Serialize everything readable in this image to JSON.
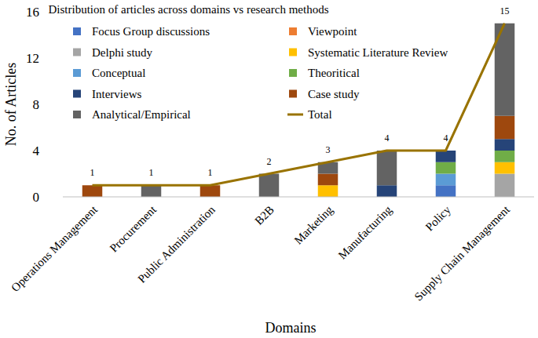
{
  "chart_data": {
    "type": "bar",
    "stacked": true,
    "title": "Distribution of articles across domains vs research methods",
    "x_label": "Domains",
    "y_label": "No. of Articles",
    "categories": [
      "Operations Management",
      "Procurement",
      "Public Administration",
      "B2B",
      "Marketing",
      "Manufacturing",
      "Policy",
      "Supply Chain Management"
    ],
    "ylim": [
      0,
      16
    ],
    "yticks": [
      0,
      4,
      8,
      12,
      16
    ],
    "grid": false,
    "legend": "upper left",
    "series": [
      {
        "name": "Focus Group discussions",
        "color": "#4472c4",
        "values": [
          0,
          0,
          0,
          0,
          0,
          0,
          1,
          0
        ]
      },
      {
        "name": "Viewpoint",
        "color": "#ed7d31",
        "values": [
          0,
          0,
          0,
          0,
          0,
          0,
          0,
          0
        ]
      },
      {
        "name": "Delphi study",
        "color": "#a5a5a5",
        "values": [
          0,
          0,
          0,
          0,
          0,
          0,
          0,
          2
        ]
      },
      {
        "name": "Systematic Literature Review",
        "color": "#ffc000",
        "values": [
          0,
          0,
          0,
          0,
          1,
          0,
          0,
          1
        ]
      },
      {
        "name": "Conceptual",
        "color": "#5b9bd5",
        "values": [
          0,
          0,
          0,
          0,
          0,
          0,
          1,
          0
        ]
      },
      {
        "name": "Theoritical",
        "color": "#70ad47",
        "values": [
          0,
          0,
          0,
          0,
          0,
          0,
          1,
          1
        ]
      },
      {
        "name": "Interviews",
        "color": "#264478",
        "values": [
          0,
          0,
          0,
          0,
          0,
          1,
          1,
          1
        ]
      },
      {
        "name": "Case study",
        "color": "#9e480e",
        "values": [
          1,
          0,
          1,
          0,
          1,
          0,
          0,
          2
        ]
      },
      {
        "name": "Analytical/Empirical",
        "color": "#636363",
        "values": [
          0,
          1,
          0,
          2,
          1,
          3,
          0,
          8
        ]
      },
      {
        "name": "Total",
        "type": "line",
        "color": "#997300",
        "data_labels": true,
        "values": [
          1,
          1,
          1,
          2,
          3,
          4,
          4,
          15
        ]
      }
    ]
  }
}
